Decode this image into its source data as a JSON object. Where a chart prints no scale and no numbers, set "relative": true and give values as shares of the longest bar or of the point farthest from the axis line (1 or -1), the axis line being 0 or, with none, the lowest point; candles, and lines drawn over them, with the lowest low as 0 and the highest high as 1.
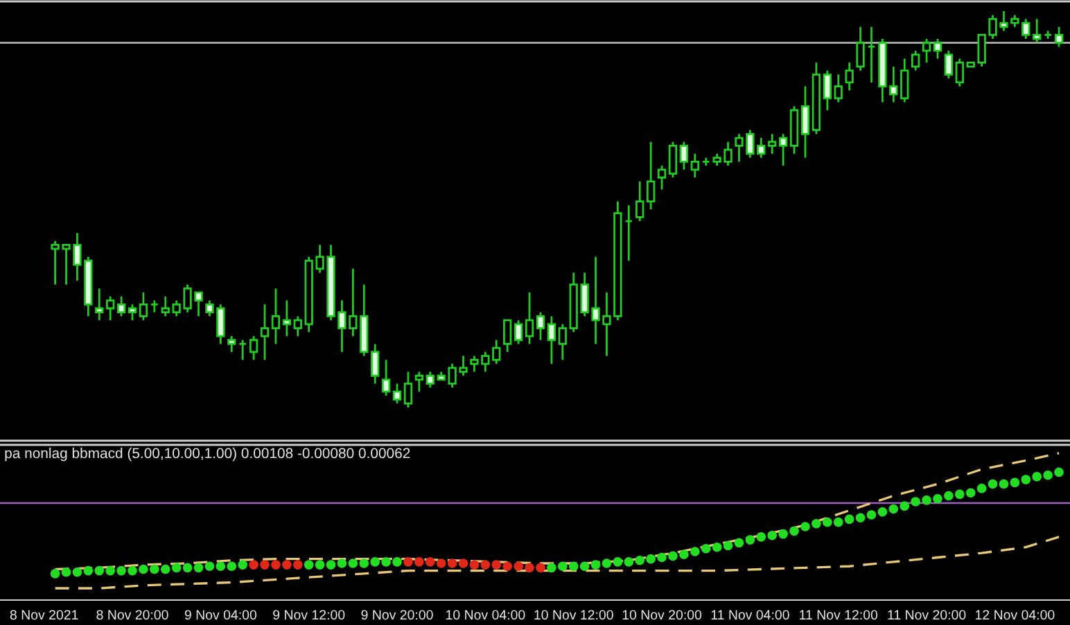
{
  "chart_data": [
    {
      "type": "candlestick",
      "relative": true,
      "color": "#22cc22",
      "tick_labels": false,
      "categories": [
        null,
        null,
        null,
        null,
        null,
        null,
        null,
        null,
        null,
        null,
        null,
        null,
        null,
        null,
        null,
        null,
        null,
        null,
        null,
        null,
        null,
        null,
        null,
        null,
        null,
        null,
        null,
        null,
        null,
        null,
        null,
        null,
        null,
        null,
        null,
        null,
        null,
        null,
        null,
        null,
        null,
        null,
        null,
        null,
        null,
        null,
        null,
        null,
        null,
        null,
        null,
        null,
        null,
        null,
        null,
        null,
        null,
        null,
        null,
        null,
        null,
        null,
        null,
        null,
        null,
        null,
        null,
        null,
        null,
        null,
        null,
        null,
        null,
        null,
        null,
        null,
        null,
        null,
        null,
        null,
        null,
        null,
        null,
        null,
        null,
        null,
        null,
        null,
        null,
        null,
        null,
        null
      ],
      "ohlc": [
        [
          0.4,
          0.42,
          0.31,
          0.41
        ],
        [
          0.4,
          0.41,
          0.31,
          0.41
        ],
        [
          0.41,
          0.44,
          0.32,
          0.36
        ],
        [
          0.37,
          0.38,
          0.23,
          0.26
        ],
        [
          0.25,
          0.3,
          0.22,
          0.24
        ],
        [
          0.25,
          0.28,
          0.22,
          0.27
        ],
        [
          0.26,
          0.28,
          0.23,
          0.24
        ],
        [
          0.25,
          0.26,
          0.22,
          0.24
        ],
        [
          0.23,
          0.29,
          0.22,
          0.26
        ],
        [
          0.26,
          0.27,
          0.24,
          0.26
        ],
        [
          0.24,
          0.28,
          0.23,
          0.25
        ],
        [
          0.24,
          0.27,
          0.23,
          0.26
        ],
        [
          0.25,
          0.31,
          0.24,
          0.3
        ],
        [
          0.29,
          0.29,
          0.23,
          0.27
        ],
        [
          0.26,
          0.27,
          0.23,
          0.24
        ],
        [
          0.25,
          0.26,
          0.16,
          0.18
        ],
        [
          0.17,
          0.18,
          0.14,
          0.16
        ],
        [
          0.16,
          0.17,
          0.12,
          0.16
        ],
        [
          0.14,
          0.18,
          0.12,
          0.17
        ],
        [
          0.18,
          0.26,
          0.12,
          0.2
        ],
        [
          0.2,
          0.3,
          0.16,
          0.23
        ],
        [
          0.22,
          0.27,
          0.18,
          0.21
        ],
        [
          0.2,
          0.23,
          0.18,
          0.22
        ],
        [
          0.21,
          0.38,
          0.19,
          0.37
        ],
        [
          0.35,
          0.41,
          0.34,
          0.38
        ],
        [
          0.38,
          0.41,
          0.22,
          0.23
        ],
        [
          0.24,
          0.27,
          0.14,
          0.2
        ],
        [
          0.2,
          0.35,
          0.18,
          0.23
        ],
        [
          0.23,
          0.31,
          0.13,
          0.14
        ],
        [
          0.14,
          0.16,
          0.06,
          0.08
        ],
        [
          0.07,
          0.12,
          0.03,
          0.04
        ],
        [
          0.04,
          0.06,
          0.01,
          0.02
        ],
        [
          0.01,
          0.09,
          0,
          0.06
        ],
        [
          0.07,
          0.09,
          0.04,
          0.08
        ],
        [
          0.08,
          0.09,
          0.05,
          0.06
        ],
        [
          0.08,
          0.09,
          0.07,
          0.07
        ],
        [
          0.06,
          0.11,
          0.05,
          0.1
        ],
        [
          0.09,
          0.13,
          0.08,
          0.1
        ],
        [
          0.11,
          0.13,
          0.09,
          0.12
        ],
        [
          0.11,
          0.14,
          0.09,
          0.13
        ],
        [
          0.12,
          0.17,
          0.11,
          0.15
        ],
        [
          0.16,
          0.22,
          0.14,
          0.22
        ],
        [
          0.21,
          0.22,
          0.16,
          0.17
        ],
        [
          0.18,
          0.29,
          0.16,
          0.22
        ],
        [
          0.23,
          0.24,
          0.17,
          0.2
        ],
        [
          0.21,
          0.23,
          0.11,
          0.17
        ],
        [
          0.16,
          0.21,
          0.12,
          0.2
        ],
        [
          0.2,
          0.34,
          0.19,
          0.31
        ],
        [
          0.31,
          0.34,
          0.23,
          0.24
        ],
        [
          0.25,
          0.38,
          0.16,
          0.22
        ],
        [
          0.21,
          0.29,
          0.13,
          0.23
        ],
        [
          0.23,
          0.52,
          0.22,
          0.49
        ],
        [
          0.47,
          0.51,
          0.37,
          0.47
        ],
        [
          0.48,
          0.57,
          0.47,
          0.52
        ],
        [
          0.52,
          0.67,
          0.5,
          0.57
        ],
        [
          0.58,
          0.61,
          0.55,
          0.6
        ],
        [
          0.59,
          0.67,
          0.58,
          0.66
        ],
        [
          0.66,
          0.67,
          0.6,
          0.62
        ],
        [
          0.6,
          0.64,
          0.58,
          0.62
        ],
        [
          0.62,
          0.63,
          0.61,
          0.62
        ],
        [
          0.62,
          0.64,
          0.61,
          0.63
        ],
        [
          0.62,
          0.67,
          0.61,
          0.65
        ],
        [
          0.66,
          0.69,
          0.62,
          0.68
        ],
        [
          0.69,
          0.7,
          0.63,
          0.64
        ],
        [
          0.66,
          0.68,
          0.63,
          0.64
        ],
        [
          0.66,
          0.69,
          0.64,
          0.67
        ],
        [
          0.68,
          0.69,
          0.61,
          0.66
        ],
        [
          0.66,
          0.76,
          0.64,
          0.75
        ],
        [
          0.76,
          0.81,
          0.63,
          0.69
        ],
        [
          0.7,
          0.87,
          0.69,
          0.84
        ],
        [
          0.84,
          0.85,
          0.75,
          0.78
        ],
        [
          0.78,
          0.84,
          0.77,
          0.81
        ],
        [
          0.82,
          0.87,
          0.8,
          0.85
        ],
        [
          0.86,
          0.96,
          0.85,
          0.92
        ],
        [
          0.91,
          0.96,
          0.82,
          0.91
        ],
        [
          0.92,
          0.93,
          0.77,
          0.81
        ],
        [
          0.81,
          0.86,
          0.77,
          0.79
        ],
        [
          0.78,
          0.88,
          0.77,
          0.85
        ],
        [
          0.86,
          0.9,
          0.85,
          0.89
        ],
        [
          0.9,
          0.93,
          0.87,
          0.92
        ],
        [
          0.92,
          0.93,
          0.88,
          0.9
        ],
        [
          0.89,
          0.9,
          0.83,
          0.84
        ],
        [
          0.82,
          0.88,
          0.81,
          0.87
        ],
        [
          0.86,
          0.87,
          0.86,
          0.87
        ],
        [
          0.87,
          0.94,
          0.86,
          0.94
        ],
        [
          0.94,
          0.99,
          0.93,
          0.98
        ],
        [
          0.97,
          1,
          0.95,
          0.96
        ],
        [
          0.97,
          0.99,
          0.96,
          0.98
        ],
        [
          0.97,
          0.98,
          0.93,
          0.94
        ],
        [
          0.94,
          0.98,
          0.92,
          0.93
        ],
        [
          0.94,
          0.95,
          0.93,
          0.94
        ],
        [
          0.94,
          0.96,
          0.91,
          0.92
        ]
      ],
      "ref_lines": [
        {
          "axis": "y",
          "value": 0.92,
          "color": "#c0c0c0",
          "line_style": "solid"
        }
      ]
    },
    {
      "type": "line",
      "relative": true,
      "title": "pa nonlag bbmacd (5.00,10.00,1.00) 0.00108 -0.00080 0.00062",
      "tick_labels": "x",
      "xlim": [
        "2021-11-08T08:00",
        "2021-11-12T09:00"
      ],
      "xticks": [
        {
          "value": "2021-11-08T12:00",
          "label": "8 Nov 2021"
        },
        {
          "value": "2021-11-08T20:00",
          "label": "8 Nov 20:00"
        },
        {
          "value": "2021-11-09T04:00",
          "label": "9 Nov 04:00"
        },
        {
          "value": "2021-11-09T12:00",
          "label": "9 Nov 12:00"
        },
        {
          "value": "2021-11-09T20:00",
          "label": "9 Nov 20:00"
        },
        {
          "value": "2021-11-10T04:00",
          "label": "10 Nov 04:00"
        },
        {
          "value": "2021-11-10T12:00",
          "label": "10 Nov 12:00"
        },
        {
          "value": "2021-11-10T20:00",
          "label": "10 Nov 20:00"
        },
        {
          "value": "2021-11-11T04:00",
          "label": "11 Nov 04:00"
        },
        {
          "value": "2021-11-11T12:00",
          "label": "11 Nov 12:00"
        },
        {
          "value": "2021-11-11T20:00",
          "label": "11 Nov 20:00"
        },
        {
          "value": "2021-11-12T04:00",
          "label": "12 Nov 04:00"
        }
      ],
      "x": [
        "2021-11-08T13:00",
        "2021-11-08T14:00",
        "2021-11-08T15:00",
        "2021-11-08T16:00",
        "2021-11-08T17:00",
        "2021-11-08T18:00",
        "2021-11-08T19:00",
        "2021-11-08T20:00",
        "2021-11-08T21:00",
        "2021-11-08T22:00",
        "2021-11-08T23:00",
        "2021-11-09T00:00",
        "2021-11-09T01:00",
        "2021-11-09T02:00",
        "2021-11-09T03:00",
        "2021-11-09T04:00",
        "2021-11-09T05:00",
        "2021-11-09T06:00",
        "2021-11-09T07:00",
        "2021-11-09T08:00",
        "2021-11-09T09:00",
        "2021-11-09T10:00",
        "2021-11-09T11:00",
        "2021-11-09T12:00",
        "2021-11-09T13:00",
        "2021-11-09T14:00",
        "2021-11-09T15:00",
        "2021-11-09T16:00",
        "2021-11-09T17:00",
        "2021-11-09T18:00",
        "2021-11-09T19:00",
        "2021-11-09T20:00",
        "2021-11-09T21:00",
        "2021-11-09T22:00",
        "2021-11-09T23:00",
        "2021-11-10T00:00",
        "2021-11-10T01:00",
        "2021-11-10T02:00",
        "2021-11-10T03:00",
        "2021-11-10T04:00",
        "2021-11-10T05:00",
        "2021-11-10T06:00",
        "2021-11-10T07:00",
        "2021-11-10T08:00",
        "2021-11-10T09:00",
        "2021-11-10T10:00",
        "2021-11-10T11:00",
        "2021-11-10T12:00",
        "2021-11-10T13:00",
        "2021-11-10T14:00",
        "2021-11-10T15:00",
        "2021-11-10T16:00",
        "2021-11-10T17:00",
        "2021-11-10T18:00",
        "2021-11-10T19:00",
        "2021-11-10T20:00",
        "2021-11-10T21:00",
        "2021-11-10T22:00",
        "2021-11-10T23:00",
        "2021-11-11T00:00",
        "2021-11-11T01:00",
        "2021-11-11T02:00",
        "2021-11-11T03:00",
        "2021-11-11T04:00",
        "2021-11-11T05:00",
        "2021-11-11T06:00",
        "2021-11-11T07:00",
        "2021-11-11T08:00",
        "2021-11-11T09:00",
        "2021-11-11T10:00",
        "2021-11-11T11:00",
        "2021-11-11T12:00",
        "2021-11-11T13:00",
        "2021-11-11T14:00",
        "2021-11-11T15:00",
        "2021-11-11T16:00",
        "2021-11-11T17:00",
        "2021-11-11T18:00",
        "2021-11-11T19:00",
        "2021-11-11T20:00",
        "2021-11-11T21:00",
        "2021-11-11T22:00",
        "2021-11-11T23:00",
        "2021-11-12T00:00",
        "2021-11-12T01:00",
        "2021-11-12T02:00",
        "2021-11-12T03:00",
        "2021-11-12T04:00",
        "2021-11-12T05:00",
        "2021-11-12T06:00",
        "2021-11-12T07:00",
        "2021-11-12T08:00"
      ],
      "ref_lines": [
        {
          "axis": "y",
          "value": 0.66,
          "color": "#a060c0",
          "line_style": "solid"
        }
      ],
      "series": [
        {
          "type": "line",
          "color": "#e8c878",
          "line_style": "dashed",
          "x": [
            "2021-11-08T13:00",
            "2021-11-08T17:00",
            "2021-11-08T21:00",
            "2021-11-09T01:00",
            "2021-11-09T05:00",
            "2021-11-09T09:00",
            "2021-11-09T13:00",
            "2021-11-09T17:00",
            "2021-11-09T21:00",
            "2021-11-10T01:00",
            "2021-11-10T05:00",
            "2021-11-10T09:00",
            "2021-11-10T13:00",
            "2021-11-10T17:00",
            "2021-11-10T21:00",
            "2021-11-11T01:00",
            "2021-11-11T05:00",
            "2021-11-11T09:00",
            "2021-11-11T13:00",
            "2021-11-11T17:00",
            "2021-11-11T21:00",
            "2021-11-12T01:00",
            "2021-11-12T05:00",
            "2021-11-12T08:00"
          ],
          "values": [
            0.21,
            0.22,
            0.24,
            0.25,
            0.27,
            0.28,
            0.28,
            0.28,
            0.28,
            0.27,
            0.26,
            0.25,
            0.25,
            0.27,
            0.32,
            0.38,
            0.44,
            0.51,
            0.61,
            0.71,
            0.79,
            0.89,
            0.95,
            1.0
          ]
        },
        {
          "type": "line",
          "color": "#e8c878",
          "line_style": "dashed",
          "x": [
            "2021-11-08T13:00",
            "2021-11-08T17:00",
            "2021-11-08T21:00",
            "2021-11-09T01:00",
            "2021-11-09T05:00",
            "2021-11-09T09:00",
            "2021-11-09T13:00",
            "2021-11-09T17:00",
            "2021-11-09T21:00",
            "2021-11-10T01:00",
            "2021-11-10T05:00",
            "2021-11-10T09:00",
            "2021-11-10T13:00",
            "2021-11-10T17:00",
            "2021-11-10T21:00",
            "2021-11-11T01:00",
            "2021-11-11T05:00",
            "2021-11-11T09:00",
            "2021-11-11T13:00",
            "2021-11-11T17:00",
            "2021-11-11T21:00",
            "2021-11-12T01:00",
            "2021-11-12T05:00",
            "2021-11-12T08:00"
          ],
          "values": [
            0.08,
            0.08,
            0.1,
            0.11,
            0.12,
            0.14,
            0.16,
            0.18,
            0.2,
            0.2,
            0.2,
            0.2,
            0.2,
            0.2,
            0.2,
            0.2,
            0.21,
            0.22,
            0.23,
            0.26,
            0.29,
            0.32,
            0.36,
            0.43
          ]
        },
        {
          "type": "scatter",
          "marker": "circle",
          "values": [
            0.18,
            0.19,
            0.19,
            0.2,
            0.2,
            0.2,
            0.2,
            0.2,
            0.21,
            0.21,
            0.21,
            0.22,
            0.22,
            0.22,
            0.23,
            0.23,
            0.23,
            0.24,
            0.24,
            0.24,
            0.24,
            0.24,
            0.24,
            0.24,
            0.24,
            0.24,
            0.25,
            0.25,
            0.25,
            0.26,
            0.26,
            0.26,
            0.26,
            0.26,
            0.26,
            0.25,
            0.25,
            0.25,
            0.24,
            0.24,
            0.24,
            0.23,
            0.23,
            0.22,
            0.22,
            0.22,
            0.23,
            0.23,
            0.23,
            0.24,
            0.25,
            0.26,
            0.26,
            0.27,
            0.28,
            0.29,
            0.3,
            0.31,
            0.33,
            0.35,
            0.36,
            0.37,
            0.39,
            0.41,
            0.43,
            0.44,
            0.45,
            0.47,
            0.5,
            0.52,
            0.53,
            0.53,
            0.55,
            0.56,
            0.58,
            0.6,
            0.62,
            0.64,
            0.67,
            0.68,
            0.69,
            0.71,
            0.72,
            0.73,
            0.76,
            0.79,
            0.79,
            0.8,
            0.82,
            0.84,
            0.85,
            0.87
          ],
          "colors": [
            "#22dd22",
            "#22dd22",
            "#22dd22",
            "#22dd22",
            "#22dd22",
            "#22dd22",
            "#22dd22",
            "#22dd22",
            "#22dd22",
            "#22dd22",
            "#22dd22",
            "#22dd22",
            "#22dd22",
            "#22dd22",
            "#22dd22",
            "#22dd22",
            "#22dd22",
            "#22dd22",
            "#e02818",
            "#e02818",
            "#e02818",
            "#e02818",
            "#e02818",
            "#22dd22",
            "#22dd22",
            "#22dd22",
            "#22dd22",
            "#22dd22",
            "#22dd22",
            "#22dd22",
            "#22dd22",
            "#22dd22",
            "#e02818",
            "#e02818",
            "#e02818",
            "#e02818",
            "#e02818",
            "#e02818",
            "#e02818",
            "#e02818",
            "#e02818",
            "#e02818",
            "#e02818",
            "#e02818",
            "#e02818",
            "#22dd22",
            "#22dd22",
            "#22dd22",
            "#22dd22",
            "#22dd22",
            "#22dd22",
            "#22dd22",
            "#22dd22",
            "#22dd22",
            "#22dd22",
            "#22dd22",
            "#22dd22",
            "#22dd22",
            "#22dd22",
            "#22dd22",
            "#22dd22",
            "#22dd22",
            "#22dd22",
            "#22dd22",
            "#22dd22",
            "#22dd22",
            "#22dd22",
            "#22dd22",
            "#22dd22",
            "#22dd22",
            "#22dd22",
            "#22dd22",
            "#22dd22",
            "#22dd22",
            "#22dd22",
            "#22dd22",
            "#22dd22",
            "#22dd22",
            "#22dd22",
            "#22dd22",
            "#22dd22",
            "#22dd22",
            "#22dd22",
            "#22dd22",
            "#22dd22",
            "#22dd22",
            "#22dd22",
            "#22dd22",
            "#22dd22",
            "#22dd22",
            "#22dd22",
            "#22dd22"
          ]
        }
      ]
    }
  ]
}
